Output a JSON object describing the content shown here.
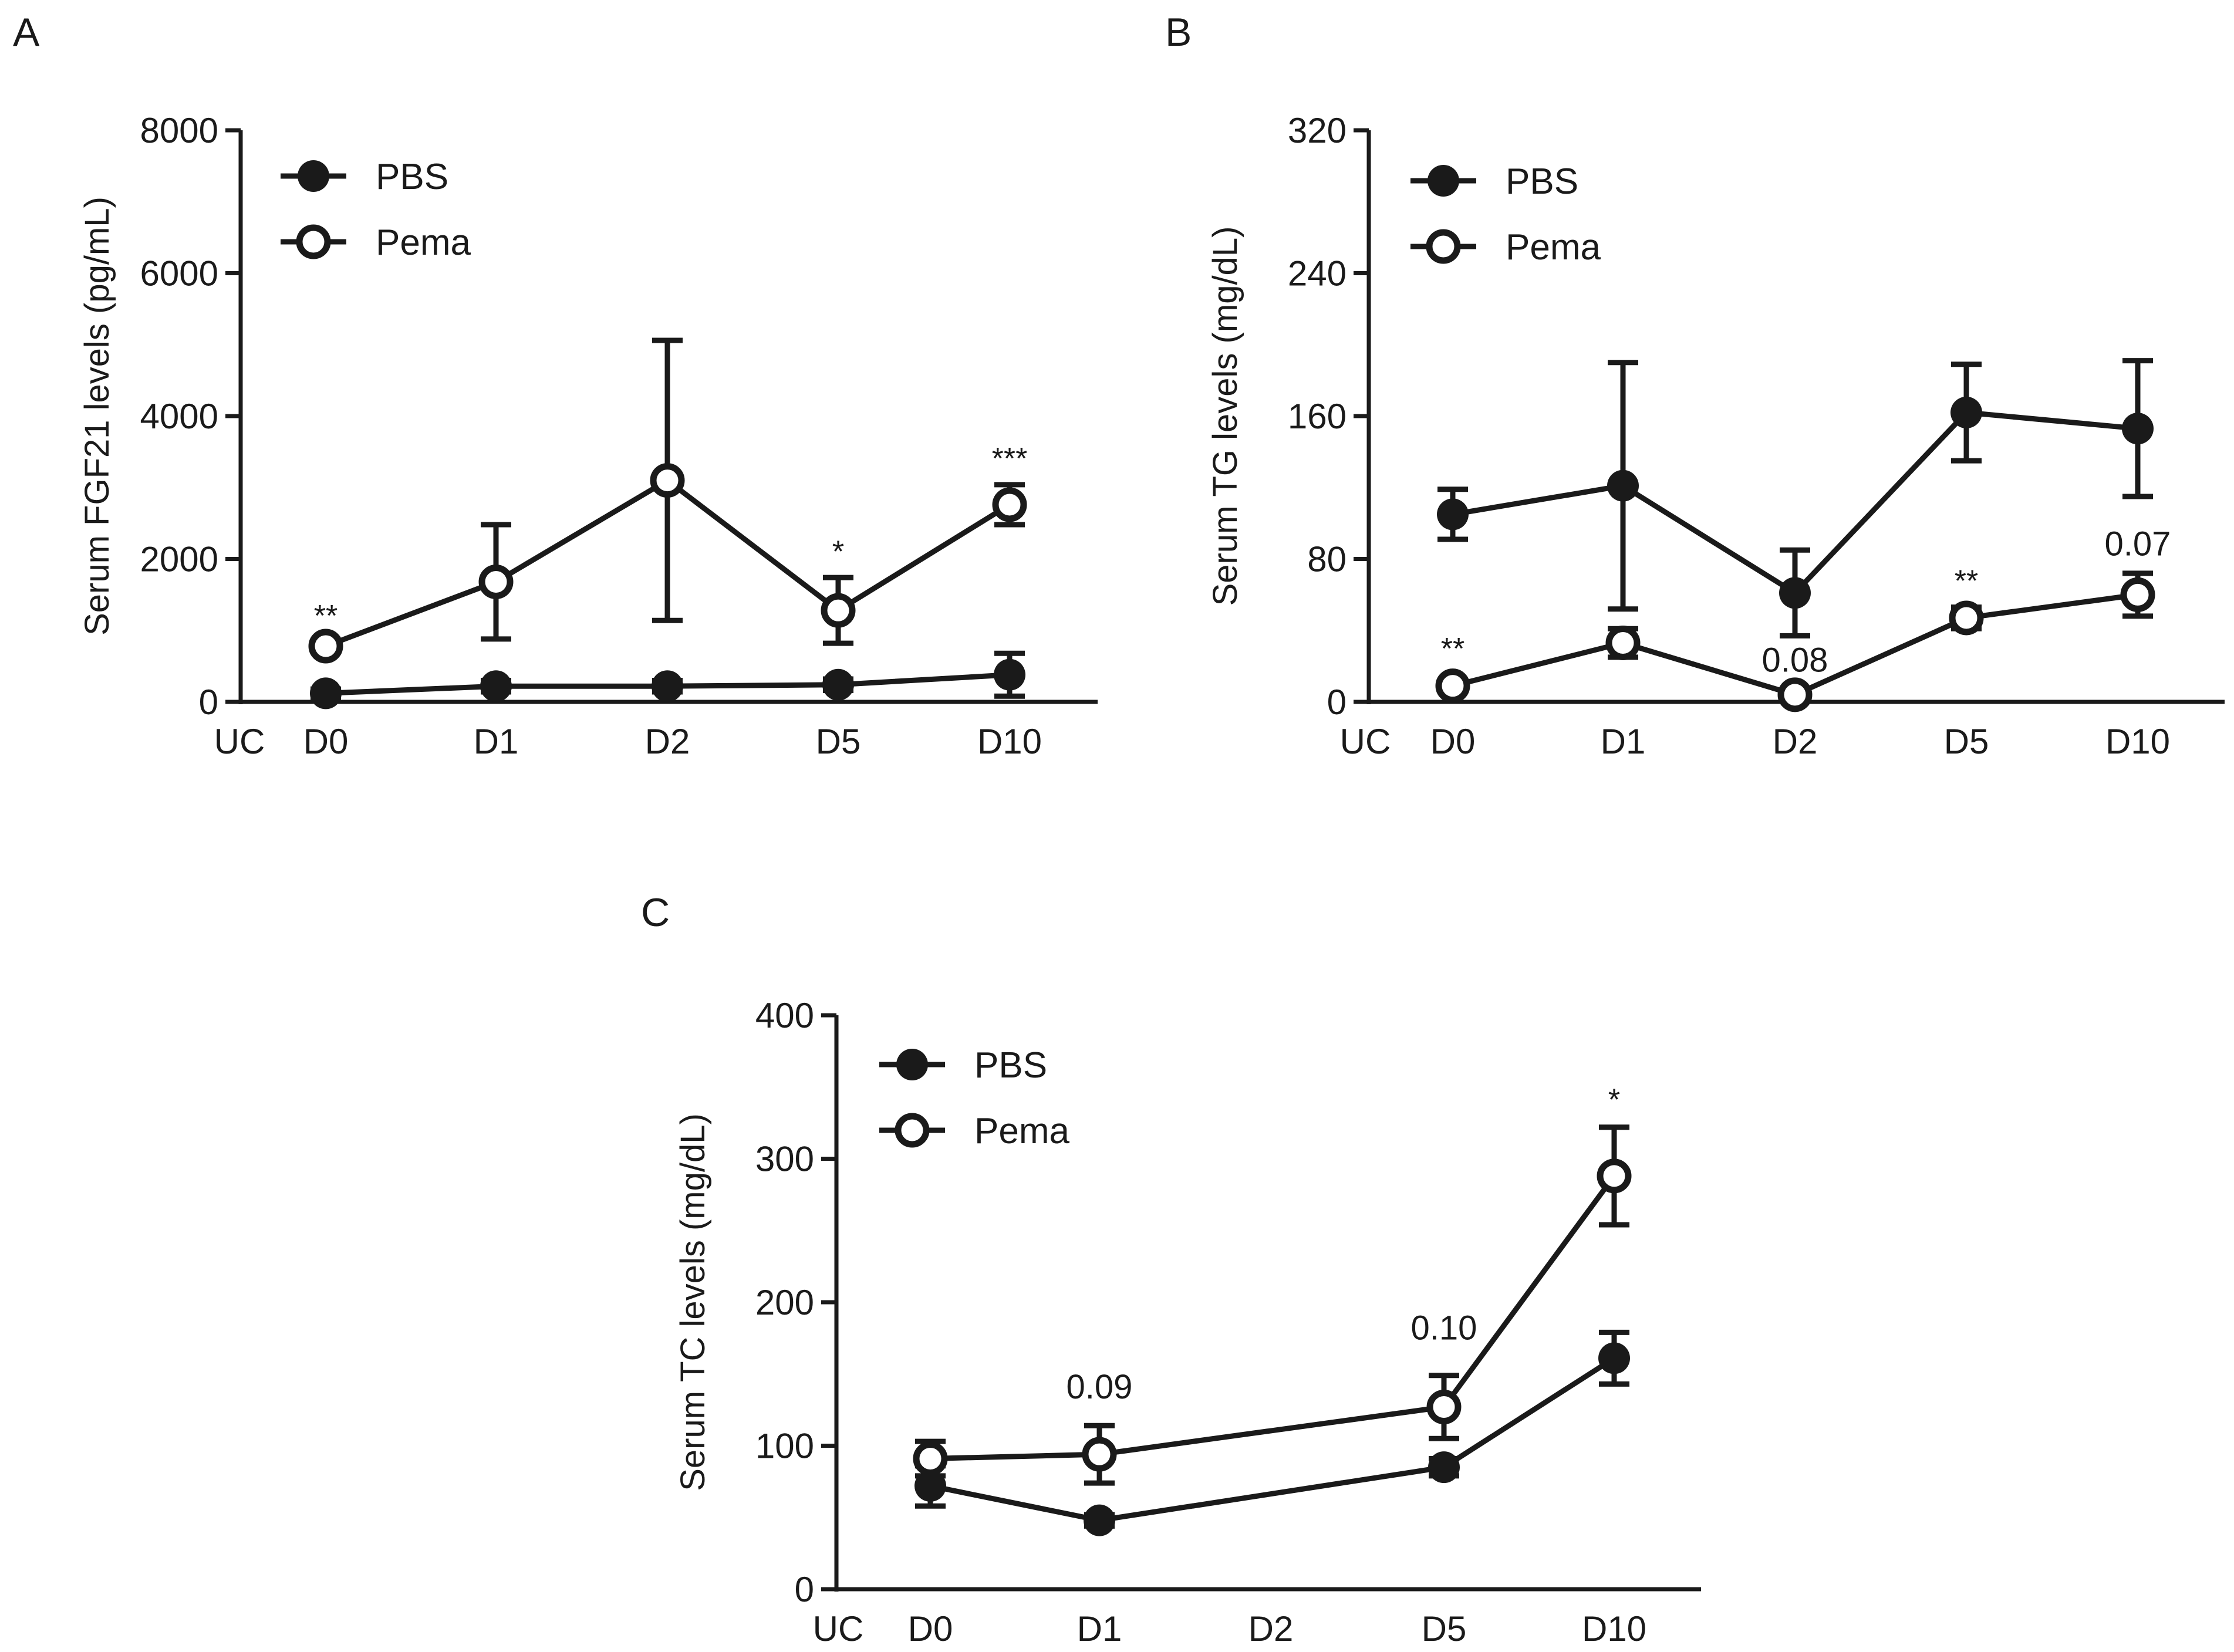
{
  "chart_data": [
    {
      "panel": "A",
      "type": "line",
      "ylabel": "Serum FGF21 levels (pg/mL)",
      "xlabel": "",
      "x_extra_label": "UC",
      "categories": [
        "D0",
        "D1",
        "D2",
        "D5",
        "D10"
      ],
      "yticks": [
        "0",
        "2000",
        "4000",
        "6000",
        "8000"
      ],
      "ylim": [
        0,
        8000
      ],
      "legend": [
        "PBS",
        "Pema"
      ],
      "series": [
        {
          "name": "PBS",
          "marker": "filled",
          "values": [
            120,
            220,
            220,
            240,
            380
          ],
          "err": [
            60,
            80,
            80,
            80,
            300
          ]
        },
        {
          "name": "Pema",
          "marker": "open",
          "values": [
            780,
            1680,
            3100,
            1280,
            2760
          ],
          "err": [
            60,
            800,
            1960,
            460,
            280
          ]
        }
      ],
      "annotations": [
        {
          "text": "**",
          "category": "D0",
          "y": 1060,
          "style": "star"
        },
        {
          "text": "*",
          "category": "D5",
          "y": 1960,
          "style": "star"
        },
        {
          "text": "***",
          "category": "D10",
          "y": 3260,
          "style": "star"
        }
      ]
    },
    {
      "panel": "B",
      "type": "line",
      "ylabel": "Serum TG levels (mg/dL)",
      "xlabel": "",
      "x_extra_label": "UC",
      "categories": [
        "D0",
        "D1",
        "D2",
        "D5",
        "D10"
      ],
      "yticks": [
        "0",
        "80",
        "160",
        "240",
        "320"
      ],
      "ylim": [
        0,
        320
      ],
      "legend": [
        "PBS",
        "Pema"
      ],
      "series": [
        {
          "name": "PBS",
          "marker": "filled",
          "values": [
            105,
            121,
            61,
            162,
            153
          ],
          "err": [
            14,
            69,
            24,
            27,
            38
          ]
        },
        {
          "name": "Pema",
          "marker": "open",
          "values": [
            9,
            33,
            4,
            47,
            60
          ],
          "err": [
            3,
            8,
            2,
            6,
            12
          ]
        }
      ],
      "annotations": [
        {
          "text": "**",
          "category": "D0",
          "y": 24,
          "style": "star"
        },
        {
          "text": "0.08",
          "category": "D2",
          "y": 17,
          "style": "num"
        },
        {
          "text": "**",
          "category": "D5",
          "y": 62,
          "style": "star"
        },
        {
          "text": "0.07",
          "category": "D10",
          "y": 82,
          "style": "num"
        }
      ]
    },
    {
      "panel": "C",
      "type": "line",
      "ylabel": "Serum TC levels (mg/dL)",
      "xlabel": "",
      "x_extra_label": "UC",
      "categories": [
        "D0",
        "D1",
        "D2",
        "D5",
        "D10"
      ],
      "yticks": [
        "0",
        "100",
        "200",
        "300",
        "400"
      ],
      "ylim": [
        0,
        400
      ],
      "legend": [
        "PBS",
        "Pema"
      ],
      "series": [
        {
          "name": "PBS",
          "marker": "filled",
          "values": [
            72,
            48,
            null,
            85,
            161
          ],
          "err": [
            14,
            4,
            null,
            6,
            18
          ]
        },
        {
          "name": "Pema",
          "marker": "open",
          "values": [
            91,
            94,
            null,
            127,
            288
          ],
          "err": [
            12,
            20,
            null,
            22,
            34
          ]
        }
      ],
      "annotations": [
        {
          "text": "0.09",
          "category": "D1",
          "y": 133,
          "style": "num"
        },
        {
          "text": "0.10",
          "category": "D5",
          "y": 174,
          "style": "num"
        },
        {
          "text": "*",
          "category": "D10",
          "y": 334,
          "style": "star"
        }
      ]
    }
  ]
}
